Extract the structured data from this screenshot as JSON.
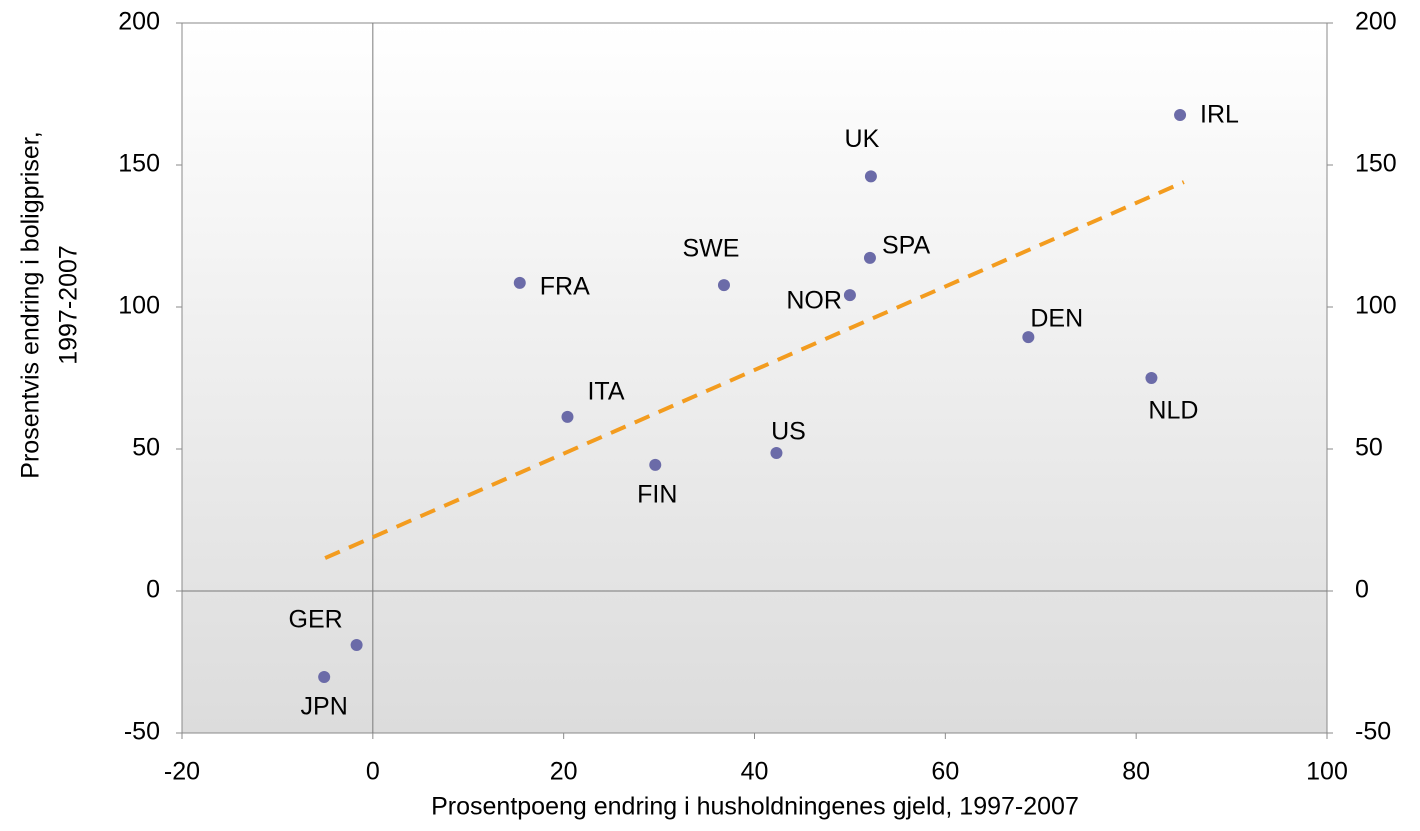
{
  "chart_data": {
    "type": "scatter",
    "xlabel": "Prosentpoeng endring i husholdningenes gjeld, 1997-2007",
    "ylabel": [
      "Prosentvis endring i boligpriser,",
      "1997-2007"
    ],
    "labels": [
      "FRA",
      "SWE",
      "UK",
      "IRL",
      "SPA",
      "NOR",
      "DEN",
      "NLD",
      "ITA",
      "FIN",
      "US",
      "GER",
      "JPN"
    ],
    "x": [
      15.4,
      36.8,
      52.2,
      84.6,
      52.1,
      50.0,
      68.7,
      81.6,
      20.4,
      29.6,
      42.3,
      -1.7,
      -5.1
    ],
    "y": [
      108.5,
      107.7,
      146,
      167.6,
      117.3,
      104.2,
      89.4,
      75,
      61.3,
      44.4,
      48.6,
      -19,
      -30.3
    ],
    "color": "#6b6ba8",
    "trendline": {
      "x": [
        -5,
        85
      ],
      "y": [
        11.6,
        144
      ],
      "color": "#f39c1f"
    },
    "reference_lines": {
      "x": 0,
      "y": 0
    },
    "xlim": [
      -20,
      100
    ],
    "xticks": [
      -20,
      0,
      20,
      40,
      60,
      80,
      100
    ],
    "ylim": [
      -50,
      200
    ],
    "yticks": [
      -50,
      0,
      50,
      100,
      150,
      200
    ],
    "y2lim": [
      -50,
      200
    ],
    "y2ticks": [
      -50,
      0,
      50,
      100,
      150,
      200
    ]
  }
}
